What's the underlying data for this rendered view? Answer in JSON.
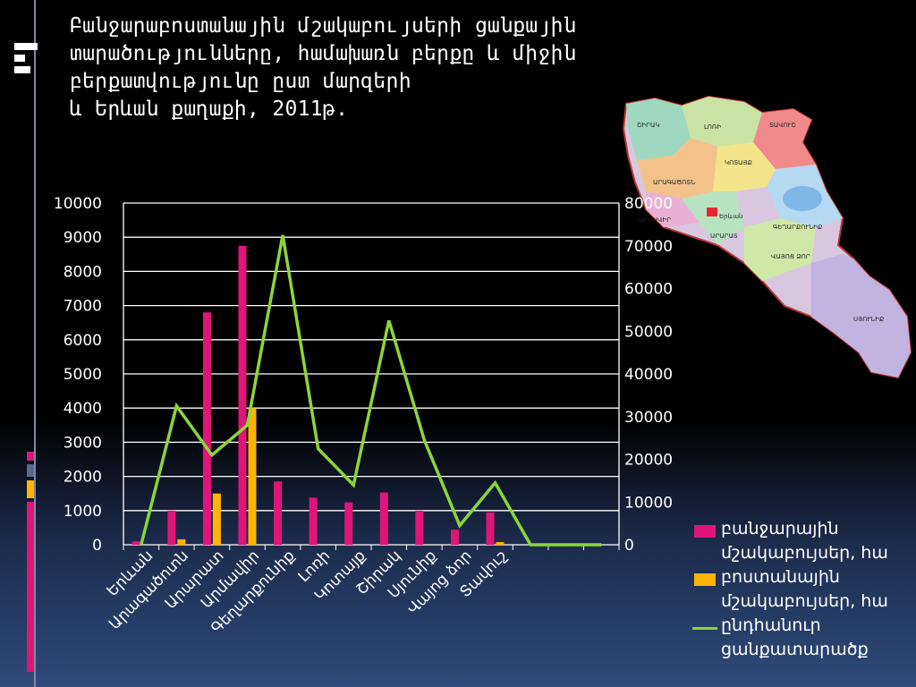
{
  "title": "Բանջարաբոստանային մշակաբույսերի ցանքային\nտարածությունները, համախառն բերքը և միջին\nբերքատվությունը  ըստ մարզերի\nև Երևան քաղաքի, 2011թ.",
  "colors": {
    "bar1": "#e0157a",
    "bar2": "#ffb400",
    "line": "#8ed43a",
    "accent_blue": "#5a6b8c"
  },
  "map": {
    "icon": "armenia-regions-map",
    "labels": [
      "ՇԻՐԱԿ",
      "ԼՈՌԻ",
      "ՏԱՎՈՒՇ",
      "ԱՐԱԳԱԾՈՏՆ",
      "ԿՈՏԱՅՔ",
      "ԳԵՂԱՐՔՈՒՆԻՔ",
      "ԱՐՄԱՎԻՐ",
      "ԱՐԱՐԱՏ",
      "ՎԱՅՈՑ ՁՈՐ",
      "ՍՅՈՒՆԻՔ",
      "Երևան"
    ]
  },
  "chart_data": {
    "type": "bar",
    "categories": [
      "Երևան",
      "Արագածոտն",
      "Արարատ",
      "Արմավիր",
      "Գեղարքունիք",
      "Լոռի",
      "Կոտայք",
      "Շիրակ",
      "Սյունիք",
      "Վայոց ձոր",
      "Տավուշ",
      "",
      "",
      ""
    ],
    "series": [
      {
        "name": "բանջարային մշակաբույսեր, հա",
        "type": "bar",
        "axis": "left",
        "values": [
          100,
          1000,
          6800,
          8750,
          1850,
          1380,
          1240,
          1530,
          1000,
          440,
          950,
          null,
          null,
          null
        ]
      },
      {
        "name": "բոստանային մշակաբույսեր, հա",
        "type": "bar",
        "axis": "left",
        "values": [
          0,
          160,
          1500,
          4000,
          0,
          0,
          0,
          0,
          0,
          0,
          80,
          null,
          null,
          null
        ]
      },
      {
        "name": "ընդհանուր ցանքատարածք",
        "type": "line",
        "axis": "right",
        "values": [
          0,
          32500,
          21000,
          28000,
          72500,
          22500,
          14000,
          52500,
          24500,
          4500,
          14500,
          0,
          0,
          0
        ]
      }
    ],
    "ylim_left": [
      0,
      10000
    ],
    "ylim_right": [
      0,
      80000
    ],
    "yticks_left": [
      "0",
      "1000",
      "2000",
      "3000",
      "4000",
      "5000",
      "6000",
      "7000",
      "8000",
      "9000",
      "10000"
    ],
    "yticks_right": [
      "0",
      "10000",
      "20000",
      "30000",
      "40000",
      "50000",
      "60000",
      "70000",
      "80000"
    ],
    "grid": true,
    "legend": "bottom-right"
  }
}
